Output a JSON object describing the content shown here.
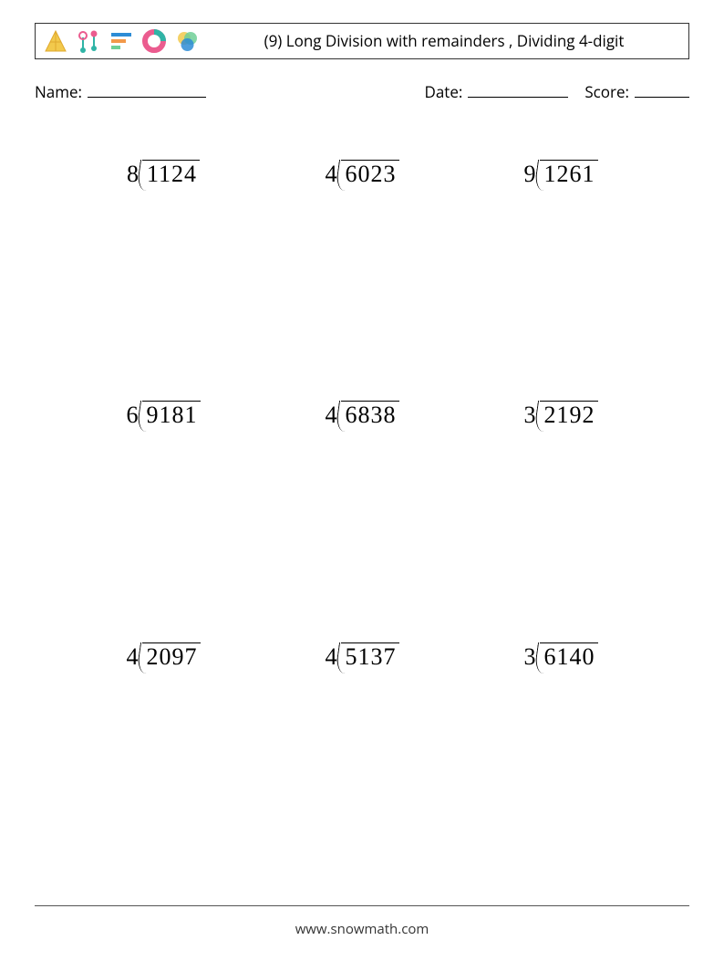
{
  "header": {
    "title": "(9) Long Division with remainders , Dividing 4-digit",
    "icon_colors": {
      "yellow": "#f2c94c",
      "yellow_dark": "#e0a92e",
      "pink": "#eb5c8f",
      "teal": "#2fb4a6",
      "blue": "#2d8cd6",
      "orange": "#f2994a",
      "green": "#6fcf97",
      "red": "#eb5757"
    }
  },
  "fields": {
    "name_label": "Name:",
    "date_label": "Date:",
    "score_label": "Score:"
  },
  "problem_font_size": 26,
  "problems": [
    {
      "divisor": "8",
      "dividend": "1124"
    },
    {
      "divisor": "4",
      "dividend": "6023"
    },
    {
      "divisor": "9",
      "dividend": "1261"
    },
    {
      "divisor": "6",
      "dividend": "9181"
    },
    {
      "divisor": "4",
      "dividend": "6838"
    },
    {
      "divisor": "3",
      "dividend": "2192"
    },
    {
      "divisor": "4",
      "dividend": "2097"
    },
    {
      "divisor": "4",
      "dividend": "5137"
    },
    {
      "divisor": "3",
      "dividend": "6140"
    }
  ],
  "footer": {
    "url": "www.snowmath.com"
  }
}
